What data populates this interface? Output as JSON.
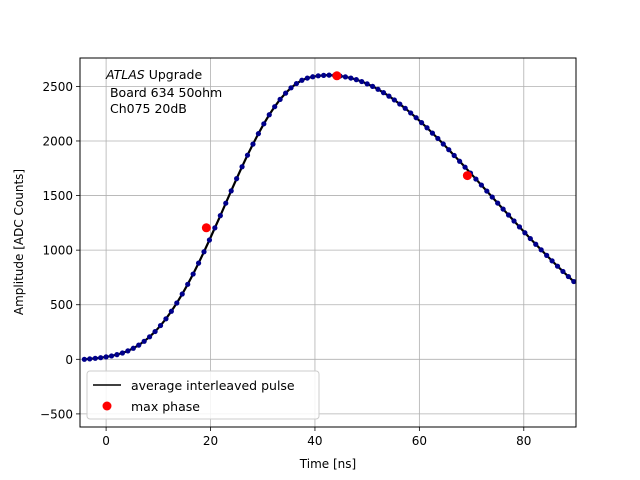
{
  "chart_data": {
    "type": "line",
    "xlabel": "Time [ns]",
    "ylabel": "Amplitude [ADC Counts]",
    "xlim": [
      -5,
      90
    ],
    "ylim": [
      -620,
      2760
    ],
    "xticks": [
      0,
      20,
      40,
      60,
      80
    ],
    "yticks": [
      -500,
      0,
      500,
      1000,
      1500,
      2000,
      2500
    ],
    "grid": true,
    "legend_position": "bottom-left",
    "annotation": {
      "italic": "ATLAS",
      "rest": " Upgrade",
      "line2": " Board 634 50ohm",
      "line3": " Ch075 20dB"
    },
    "series": [
      {
        "name": "average interleaved pulse",
        "color": "#000000",
        "marker_color": "#00008b",
        "x": [
          -4.17,
          -3.13,
          -2.08,
          -1.04,
          0.0,
          1.04,
          2.08,
          3.13,
          4.17,
          5.21,
          6.25,
          7.29,
          8.33,
          9.38,
          10.42,
          11.46,
          12.5,
          13.54,
          14.58,
          15.63,
          16.67,
          17.71,
          18.75,
          19.79,
          20.83,
          21.88,
          22.92,
          23.96,
          25.0,
          26.04,
          27.08,
          28.13,
          29.17,
          30.21,
          31.25,
          32.29,
          33.33,
          34.38,
          35.42,
          36.46,
          37.5,
          38.54,
          39.58,
          40.63,
          41.67,
          42.71,
          43.75,
          44.79,
          45.83,
          46.88,
          47.92,
          48.96,
          50.0,
          51.04,
          52.08,
          53.13,
          54.17,
          55.21,
          56.25,
          57.29,
          58.33,
          59.38,
          60.42,
          61.46,
          62.5,
          63.54,
          64.58,
          65.63,
          66.67,
          67.71,
          68.75,
          69.79,
          70.83,
          71.88,
          72.92,
          73.96,
          75.0,
          76.04,
          77.08,
          78.13,
          79.17,
          80.21,
          81.25,
          82.29,
          83.33,
          84.38,
          85.42,
          86.46,
          87.5,
          88.54,
          89.58
        ],
        "y": [
          0,
          4,
          9,
          15,
          22,
          31,
          43,
          58,
          77,
          101,
          130,
          165,
          206,
          254,
          309,
          371,
          440,
          516,
          598,
          687,
          781,
          881,
          985,
          1093,
          1204,
          1316,
          1430,
          1543,
          1655,
          1764,
          1870,
          1971,
          2067,
          2157,
          2240,
          2314,
          2381,
          2438,
          2487,
          2526,
          2556,
          2576,
          2588,
          2597,
          2601,
          2603,
          2600,
          2595,
          2587,
          2576,
          2562,
          2544,
          2523,
          2500,
          2473,
          2443,
          2411,
          2376,
          2338,
          2299,
          2257,
          2213,
          2168,
          2121,
          2072,
          2023,
          1972,
          1920,
          1867,
          1814,
          1760,
          1706,
          1651,
          1596,
          1541,
          1486,
          1431,
          1376,
          1322,
          1267,
          1213,
          1159,
          1106,
          1054,
          1003,
          952,
          902,
          853,
          805,
          758,
          712
        ]
      },
      {
        "name": "max phase",
        "color": "#ff0000",
        "x": [
          19.2,
          44.2,
          69.2
        ],
        "y": [
          1205,
          2597,
          1683
        ]
      }
    ]
  }
}
